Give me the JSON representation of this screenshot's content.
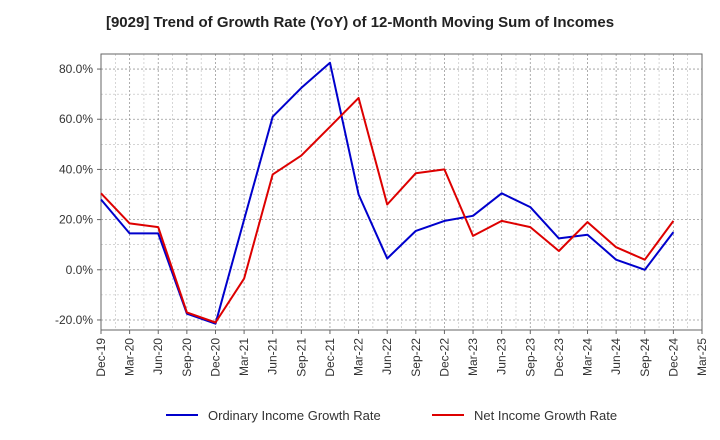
{
  "chart_data": {
    "type": "line",
    "title": "[9029]  Trend of Growth Rate (YoY) of 12-Month Moving Sum of Incomes",
    "xlabel": "",
    "ylabel": "",
    "x": [
      "Dec-19",
      "Mar-20",
      "Jun-20",
      "Sep-20",
      "Dec-20",
      "Mar-21",
      "Jun-21",
      "Sep-21",
      "Dec-21",
      "Mar-22",
      "Jun-22",
      "Sep-22",
      "Dec-22",
      "Mar-23",
      "Jun-23",
      "Sep-23",
      "Dec-23",
      "Mar-24",
      "Jun-24",
      "Sep-24",
      "Dec-24",
      "Mar-25"
    ],
    "ylim": [
      -24,
      86
    ],
    "yticks": [
      -20,
      0,
      20,
      40,
      60,
      80
    ],
    "ytick_labels": [
      "-20.0%",
      "0.0%",
      "20.0%",
      "40.0%",
      "60.0%",
      "80.0%"
    ],
    "grid": true,
    "legend_position": "bottom",
    "series": [
      {
        "name": "Ordinary Income Growth Rate",
        "color": "#0000cc",
        "values": [
          28.0,
          14.5,
          14.5,
          -17.5,
          -21.5,
          20.0,
          61.0,
          72.5,
          82.5,
          30.0,
          4.5,
          15.5,
          19.5,
          21.5,
          30.5,
          25.0,
          12.5,
          14.0,
          4.0,
          0.0,
          15.0,
          null
        ]
      },
      {
        "name": "Net Income Growth Rate",
        "color": "#dd0000",
        "values": [
          30.5,
          18.5,
          17.0,
          -17.0,
          -21.0,
          -3.5,
          38.0,
          45.5,
          57.0,
          68.5,
          26.0,
          38.5,
          40.0,
          13.5,
          19.5,
          17.0,
          7.5,
          19.0,
          9.0,
          4.0,
          19.5,
          null
        ]
      }
    ]
  }
}
